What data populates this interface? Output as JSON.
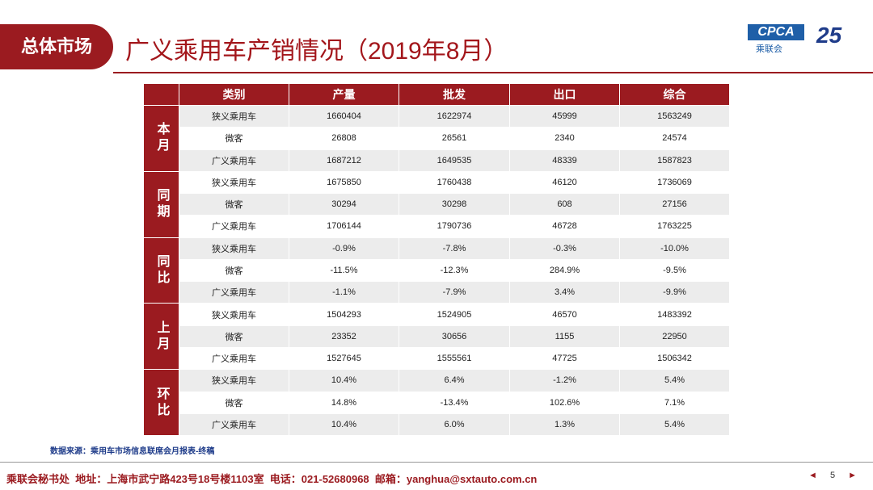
{
  "header": {
    "tab": "总体市场",
    "title": "广义乘用车产销情况（2019年8月）",
    "logo_main": "CPCA",
    "logo_sub": "乘联会",
    "logo_badge": "25"
  },
  "table": {
    "columns": [
      "类别",
      "产量",
      "批发",
      "出口",
      "综合"
    ],
    "groups": [
      {
        "label": "本月",
        "rows": [
          [
            "狭义乘用车",
            "1660404",
            "1622974",
            "45999",
            "1563249"
          ],
          [
            "微客",
            "26808",
            "26561",
            "2340",
            "24574"
          ],
          [
            "广义乘用车",
            "1687212",
            "1649535",
            "48339",
            "1587823"
          ]
        ]
      },
      {
        "label": "同期",
        "rows": [
          [
            "狭义乘用车",
            "1675850",
            "1760438",
            "46120",
            "1736069"
          ],
          [
            "微客",
            "30294",
            "30298",
            "608",
            "27156"
          ],
          [
            "广义乘用车",
            "1706144",
            "1790736",
            "46728",
            "1763225"
          ]
        ]
      },
      {
        "label": "同比",
        "rows": [
          [
            "狭义乘用车",
            "-0.9%",
            "-7.8%",
            "-0.3%",
            "-10.0%"
          ],
          [
            "微客",
            "-11.5%",
            "-12.3%",
            "284.9%",
            "-9.5%"
          ],
          [
            "广义乘用车",
            "-1.1%",
            "-7.9%",
            "3.4%",
            "-9.9%"
          ]
        ]
      },
      {
        "label": "上月",
        "rows": [
          [
            "狭义乘用车",
            "1504293",
            "1524905",
            "46570",
            "1483392"
          ],
          [
            "微客",
            "23352",
            "30656",
            "1155",
            "22950"
          ],
          [
            "广义乘用车",
            "1527645",
            "1555561",
            "47725",
            "1506342"
          ]
        ]
      },
      {
        "label": "环比",
        "rows": [
          [
            "狭义乘用车",
            "10.4%",
            "6.4%",
            "-1.2%",
            "5.4%"
          ],
          [
            "微客",
            "14.8%",
            "-13.4%",
            "102.6%",
            "7.1%"
          ],
          [
            "广义乘用车",
            "10.4%",
            "6.0%",
            "1.3%",
            "5.4%"
          ]
        ]
      }
    ]
  },
  "source": "数据来源：乘用车市场信息联席会月报表-终稿",
  "footer": {
    "address": "乘联会秘书处  地址：上海市武宁路423号18号楼1103室  电话：021-52680968  邮箱：yanghua@sxtauto.com.cn",
    "page": "5"
  }
}
